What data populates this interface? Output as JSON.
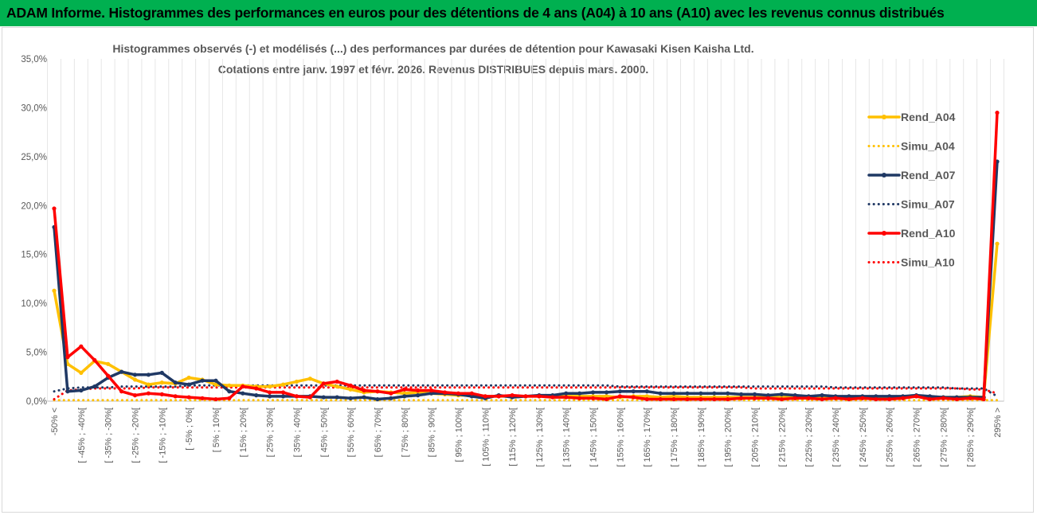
{
  "header": {
    "banner": "ADAM Informe. Histogrammes des performances en euros pour des détentions de 4 ans (A04) à 10 ans (A10) avec les revenus connus distribués"
  },
  "colors": {
    "banner_bg": "#00b050",
    "A04": "#ffc000",
    "A07": "#1f3864",
    "A10": "#ff0000"
  },
  "chart_data": {
    "type": "line",
    "title": "Histogrammes observés (-) et modélisés (...) des performances par durées de détention pour Kawasaki Kisen Kaisha Ltd.",
    "subtitle": "Cotations entre janv. 1997 et févr. 2026. Revenus DISTRIBUES depuis mars. 2000.",
    "ylim": [
      0,
      35
    ],
    "yticks": [
      "0,0%",
      "5,0%",
      "10,0%",
      "15,0%",
      "20,0%",
      "25,0%",
      "30,0%",
      "35,0%"
    ],
    "grid": "vertical",
    "legend_position": "right",
    "categories": [
      "-50% <",
      "[ -50% ; -45%[",
      "[ -45% ; -40%[",
      "[ -40% ; -35%[",
      "[ -35% ; -30%[",
      "[ -30% ; -25%[",
      "[ -25% ; -20%[",
      "[ -20% ; -15%[",
      "[ -15% ; -10%[",
      "[ -10% ; -5%[",
      "[ -5% ; 0%[",
      "[ 0% ; 5%[",
      "[ 5% ; 10%[",
      "[ 10% ; 15%[",
      "[ 15% ; 20%[",
      "[ 20% ; 25%[",
      "[ 25% ; 30%[",
      "[ 30% ; 35%[",
      "[ 35% ; 40%[",
      "[ 40% ; 45%[",
      "[ 45% ; 50%[",
      "[ 50% ; 55%[",
      "[ 55% ; 60%[",
      "[ 60% ; 65%[",
      "[ 65% ; 70%[",
      "[ 70% ; 75%[",
      "[ 75% ; 80%[",
      "[ 80% ; 85%[",
      "[ 85% ; 90%[",
      "[ 90% ; 95%[",
      "[ 95% ; 100%[",
      "[ 100% ; 105%[",
      "[ 105% ; 110%[",
      "[ 110% ; 115%[",
      "[ 115% ; 120%[",
      "[ 120% ; 125%[",
      "[ 125% ; 130%[",
      "[ 130% ; 135%[",
      "[ 135% ; 140%[",
      "[ 140% ; 145%[",
      "[ 145% ; 150%[",
      "[ 150% ; 155%[",
      "[ 155% ; 160%[",
      "[ 160% ; 165%[",
      "[ 165% ; 170%[",
      "[ 170% ; 175%[",
      "[ 175% ; 180%[",
      "[ 180% ; 185%[",
      "[ 185% ; 190%[",
      "[ 190% ; 195%[",
      "[ 195% ; 200%[",
      "[ 200% ; 205%[",
      "[ 205% ; 210%[",
      "[ 210% ; 215%[",
      "[ 215% ; 220%[",
      "[ 220% ; 225%[",
      "[ 225% ; 230%[",
      "[ 230% ; 235%[",
      "[ 235% ; 240%[",
      "[ 240% ; 245%[",
      "[ 245% ; 250%[",
      "[ 250% ; 255%[",
      "[ 255% ; 260%[",
      "[ 260% ; 265%[",
      "[ 265% ; 270%[",
      "[ 270% ; 275%[",
      "[ 275% ; 280%[",
      "[ 280% ; 285%[",
      "[ 285% ; 290%[",
      "[ 290% ; 295%[",
      "295% >"
    ],
    "series": [
      {
        "name": "Rend_A04",
        "style": "solid",
        "color": "#ffc000",
        "values": [
          11.3,
          3.8,
          2.9,
          4.1,
          3.8,
          3.0,
          2.2,
          1.7,
          1.9,
          1.8,
          2.4,
          2.2,
          1.7,
          1.6,
          1.6,
          1.5,
          1.5,
          1.7,
          2.0,
          2.3,
          1.8,
          1.5,
          1.2,
          0.9,
          1.0,
          0.9,
          0.8,
          0.9,
          0.8,
          0.7,
          0.6,
          0.6,
          0.5,
          0.5,
          0.5,
          0.5,
          0.5,
          0.5,
          0.5,
          0.5,
          0.5,
          0.5,
          0.4,
          0.5,
          0.5,
          0.4,
          0.5,
          0.4,
          0.4,
          0.4,
          0.4,
          0.4,
          0.4,
          0.4,
          0.4,
          0.4,
          0.4,
          0.4,
          0.4,
          0.4,
          0.4,
          0.4,
          0.4,
          0.4,
          0.5,
          0.4,
          0.4,
          0.4,
          0.5,
          0.4,
          16.1
        ]
      },
      {
        "name": "Simu_A04",
        "style": "dotted",
        "color": "#ffc000",
        "values": [
          0.1,
          0.1,
          0.1,
          0.1,
          0.1,
          0.1,
          0.1,
          0.1,
          0.1,
          0.1,
          0.1,
          0.1,
          0.1,
          0.1,
          0.1,
          0.1,
          0.1,
          0.1,
          0.1,
          0.1,
          0.1,
          0.1,
          0.1,
          0.1,
          0.1,
          0.1,
          0.1,
          0.1,
          0.1,
          0.1,
          0.1,
          0.1,
          0.1,
          0.1,
          0.1,
          0.1,
          0.1,
          0.1,
          0.1,
          0.1,
          0.1,
          0.1,
          0.1,
          0.1,
          0.1,
          0.1,
          0.1,
          0.1,
          0.1,
          0.1,
          0.1,
          0.1,
          0.1,
          0.1,
          0.1,
          0.1,
          0.1,
          0.1,
          0.1,
          0.1,
          0.1,
          0.1,
          0.1,
          0.1,
          0.1,
          0.1,
          0.1,
          0.1,
          0.1,
          0.1,
          0.1
        ]
      },
      {
        "name": "Rend_A07",
        "style": "solid",
        "color": "#1f3864",
        "values": [
          17.8,
          1.0,
          1.1,
          1.5,
          2.4,
          3.0,
          2.7,
          2.7,
          2.9,
          1.9,
          1.7,
          2.1,
          2.1,
          1.0,
          0.8,
          0.6,
          0.5,
          0.5,
          0.5,
          0.5,
          0.4,
          0.4,
          0.3,
          0.4,
          0.2,
          0.3,
          0.5,
          0.6,
          0.8,
          0.8,
          0.7,
          0.5,
          0.3,
          0.6,
          0.4,
          0.5,
          0.6,
          0.6,
          0.8,
          0.8,
          0.9,
          0.9,
          1.0,
          1.0,
          1.0,
          0.8,
          0.8,
          0.8,
          0.8,
          0.8,
          0.8,
          0.7,
          0.7,
          0.6,
          0.7,
          0.6,
          0.5,
          0.6,
          0.5,
          0.5,
          0.5,
          0.5,
          0.5,
          0.5,
          0.6,
          0.5,
          0.4,
          0.4,
          0.4,
          0.4,
          24.5
        ]
      },
      {
        "name": "Simu_A07",
        "style": "dotted",
        "color": "#1f3864",
        "values": [
          1.0,
          1.3,
          1.4,
          1.4,
          1.4,
          1.5,
          1.5,
          1.5,
          1.5,
          1.5,
          1.6,
          1.6,
          1.6,
          1.6,
          1.6,
          1.6,
          1.6,
          1.6,
          1.6,
          1.6,
          1.6,
          1.6,
          1.6,
          1.6,
          1.6,
          1.6,
          1.6,
          1.6,
          1.6,
          1.6,
          1.6,
          1.6,
          1.6,
          1.6,
          1.6,
          1.6,
          1.6,
          1.6,
          1.6,
          1.6,
          1.6,
          1.6,
          1.5,
          1.5,
          1.5,
          1.5,
          1.5,
          1.5,
          1.5,
          1.5,
          1.5,
          1.5,
          1.5,
          1.5,
          1.5,
          1.5,
          1.5,
          1.5,
          1.4,
          1.4,
          1.4,
          1.4,
          1.4,
          1.4,
          1.4,
          1.4,
          1.4,
          1.3,
          1.3,
          1.3,
          0.5
        ]
      },
      {
        "name": "Rend_A10",
        "style": "solid",
        "color": "#ff0000",
        "values": [
          19.7,
          4.5,
          5.6,
          4.2,
          2.6,
          1.0,
          0.6,
          0.8,
          0.7,
          0.5,
          0.4,
          0.3,
          0.2,
          0.3,
          1.5,
          1.3,
          0.9,
          0.9,
          0.5,
          0.4,
          1.8,
          2.0,
          1.6,
          1.1,
          1.0,
          0.8,
          1.2,
          1.1,
          1.1,
          0.9,
          0.8,
          0.8,
          0.5,
          0.5,
          0.6,
          0.5,
          0.5,
          0.4,
          0.4,
          0.3,
          0.3,
          0.2,
          0.5,
          0.4,
          0.2,
          0.2,
          0.2,
          0.2,
          0.2,
          0.2,
          0.2,
          0.3,
          0.3,
          0.3,
          0.2,
          0.3,
          0.3,
          0.2,
          0.3,
          0.2,
          0.3,
          0.2,
          0.2,
          0.3,
          0.5,
          0.2,
          0.3,
          0.2,
          0.3,
          0.2,
          29.5
        ]
      },
      {
        "name": "Simu_A10",
        "style": "dotted",
        "color": "#ff0000",
        "values": [
          0.2,
          1.1,
          1.2,
          1.3,
          1.3,
          1.3,
          1.3,
          1.4,
          1.4,
          1.4,
          1.4,
          1.4,
          1.4,
          1.4,
          1.4,
          1.4,
          1.4,
          1.4,
          1.4,
          1.4,
          1.4,
          1.4,
          1.4,
          1.4,
          1.4,
          1.4,
          1.4,
          1.4,
          1.4,
          1.4,
          1.4,
          1.4,
          1.4,
          1.4,
          1.4,
          1.4,
          1.4,
          1.4,
          1.4,
          1.4,
          1.4,
          1.4,
          1.4,
          1.4,
          1.4,
          1.4,
          1.4,
          1.4,
          1.4,
          1.4,
          1.4,
          1.4,
          1.3,
          1.3,
          1.3,
          1.3,
          1.3,
          1.3,
          1.3,
          1.3,
          1.3,
          1.3,
          1.3,
          1.3,
          1.3,
          1.3,
          1.3,
          1.3,
          1.2,
          1.2,
          0.8
        ]
      }
    ]
  }
}
